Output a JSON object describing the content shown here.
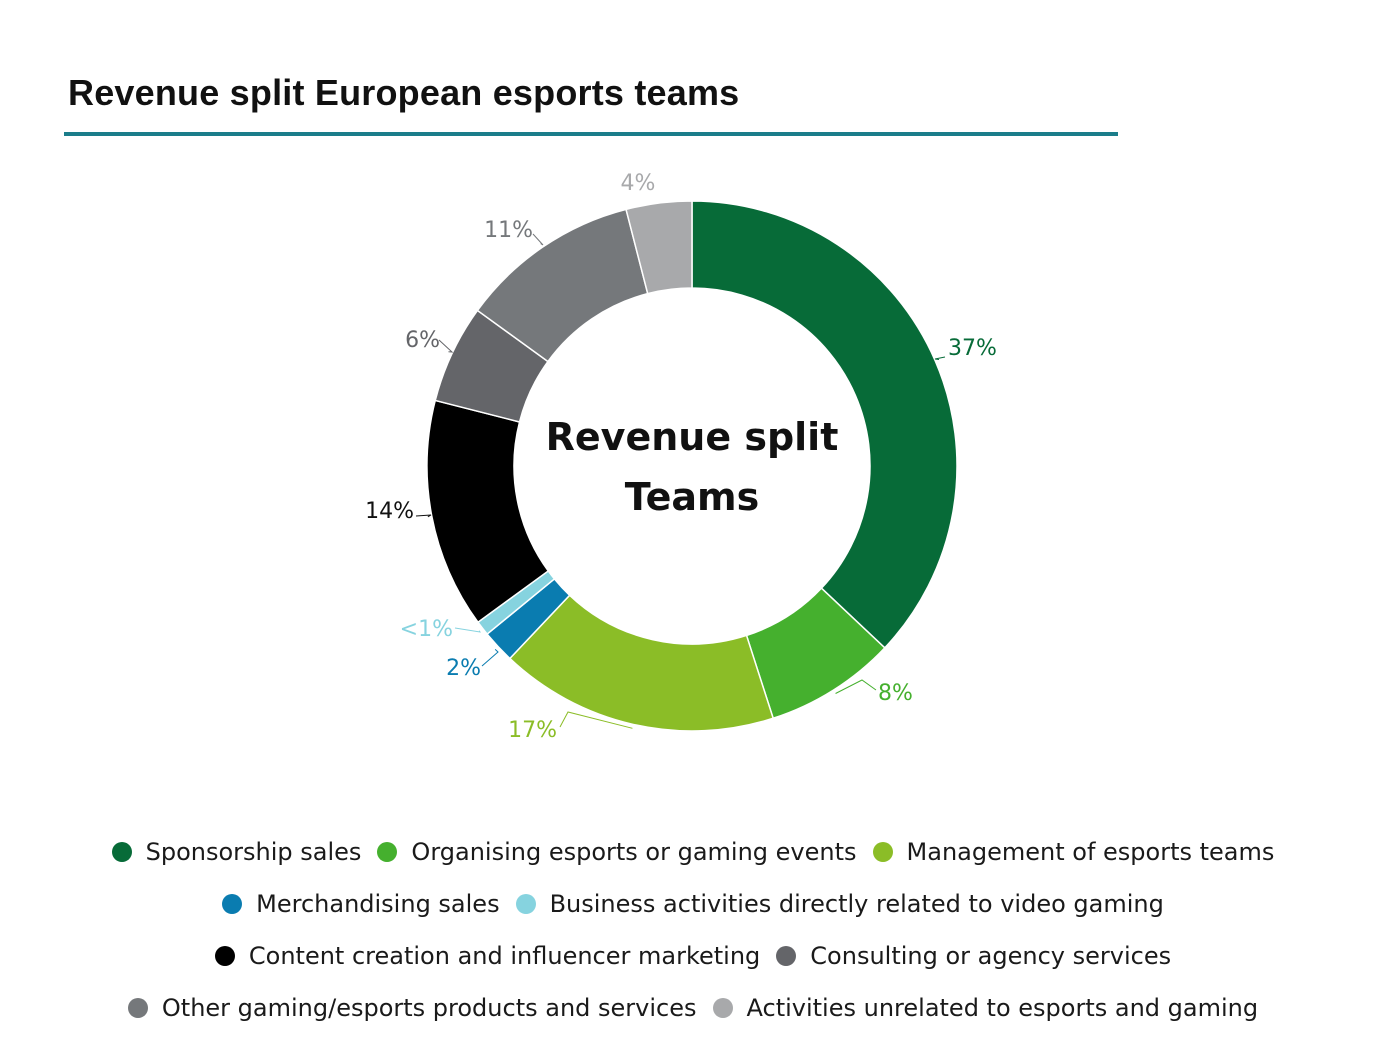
{
  "title": "Revenue split European esports teams",
  "chart_data": {
    "type": "pie",
    "title": "Revenue split European esports teams",
    "center_label": [
      "Revenue split",
      "Teams"
    ],
    "slices": [
      {
        "name": "Sponsorship sales",
        "value": 37,
        "label": "37%",
        "color": "#076b38",
        "label_color": "#076b38"
      },
      {
        "name": "Organising esports or gaming events",
        "value": 8,
        "label": "8%",
        "color": "#45b02e",
        "label_color": "#45b02e"
      },
      {
        "name": "Management of esports teams",
        "value": 17,
        "label": "17%",
        "color": "#8bbd27",
        "label_color": "#8bbd27"
      },
      {
        "name": "Merchandising sales",
        "value": 2,
        "label": "2%",
        "color": "#0a7cb0",
        "label_color": "#0a7cb0"
      },
      {
        "name": "Business activities directly related to video gaming",
        "value": 0.9,
        "label": "<1%",
        "color": "#86d3df",
        "label_color": "#86d3df"
      },
      {
        "name": "Content creation and influencer marketing",
        "value": 14,
        "label": "14%",
        "color": "#000000",
        "label_color": "#111111"
      },
      {
        "name": "Consulting or agency services",
        "value": 6,
        "label": "6%",
        "color": "#646569",
        "label_color": "#646569"
      },
      {
        "name": "Other gaming/esports products and services",
        "value": 11,
        "label": "11%",
        "color": "#75787b",
        "label_color": "#75787b"
      },
      {
        "name": "Activities unrelated to esports and gaming",
        "value": 4,
        "label": "4%",
        "color": "#a8a9ab",
        "label_color": "#a8a9ab"
      }
    ],
    "legend_position": "bottom"
  }
}
